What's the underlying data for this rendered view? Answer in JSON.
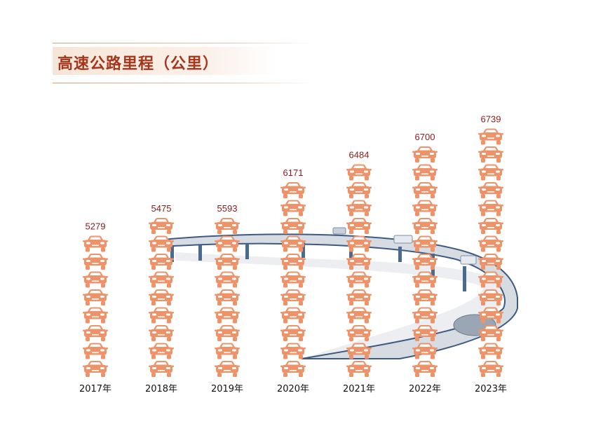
{
  "title": "高速公路里程（公里）",
  "colors": {
    "car": "#ee9369",
    "car_window": "#ffffff",
    "value_label": "#8b1a1a",
    "title": "#a8341a",
    "road": "#d7dce3",
    "road_edge": "#3d5a80",
    "pillar": "#4a6a90"
  },
  "chart_data": {
    "type": "bar",
    "mark": "stacked car icons",
    "categories": [
      "2017年",
      "2018年",
      "2019年",
      "2020年",
      "2021年",
      "2022年",
      "2023年"
    ],
    "values": [
      5279,
      5475,
      5593,
      6171,
      6484,
      6700,
      6739
    ],
    "icons_per_column": [
      8,
      9,
      9,
      11,
      12,
      13,
      14
    ]
  }
}
